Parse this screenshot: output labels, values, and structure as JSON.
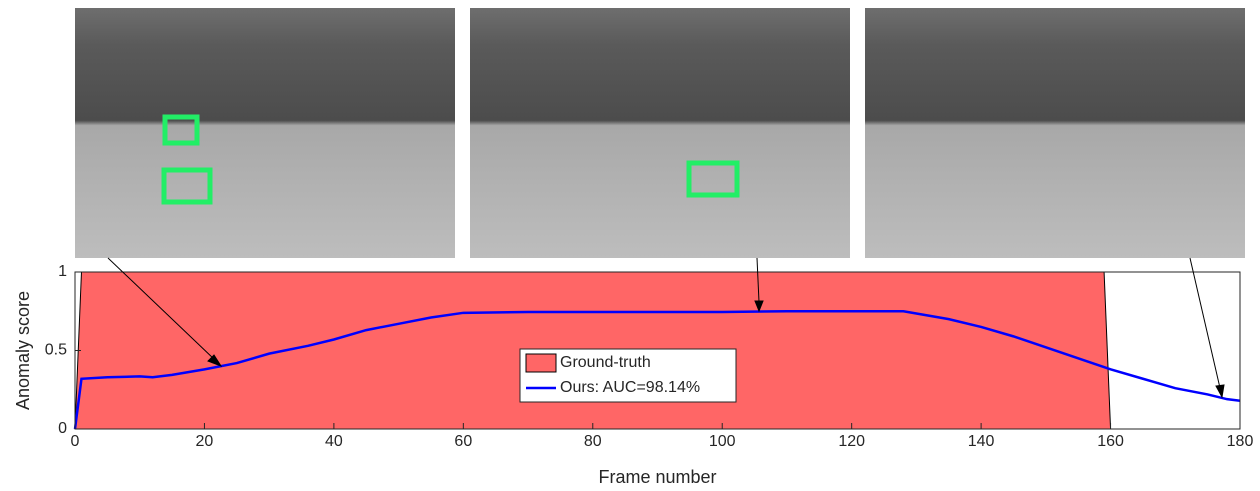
{
  "chart_data": {
    "type": "line",
    "xlabel": "Frame number",
    "ylabel": "Anomaly score",
    "xlim": [
      0,
      180
    ],
    "ylim": [
      0,
      1
    ],
    "xticks": [
      0,
      20,
      40,
      60,
      80,
      100,
      120,
      140,
      160,
      180
    ],
    "yticks": [
      0,
      0.5,
      1
    ],
    "grid": false,
    "legend": "center",
    "series": [
      {
        "name": "Ground-truth",
        "kind": "area",
        "color": "#ff6666",
        "x": [
          0,
          1,
          159,
          160
        ],
        "values": [
          0,
          1,
          1,
          0
        ]
      },
      {
        "name": "Ours: AUC=98.14%",
        "kind": "line",
        "color": "#0000ff",
        "x": [
          0,
          1,
          5,
          10,
          12,
          15,
          20,
          25,
          30,
          36,
          40,
          45,
          50,
          55,
          60,
          70,
          80,
          90,
          100,
          110,
          120,
          128,
          135,
          140,
          145,
          150,
          155,
          160,
          165,
          170,
          175,
          178,
          180
        ],
        "values": [
          0,
          0.32,
          0.33,
          0.335,
          0.33,
          0.345,
          0.38,
          0.42,
          0.48,
          0.53,
          0.57,
          0.63,
          0.67,
          0.71,
          0.74,
          0.745,
          0.745,
          0.745,
          0.745,
          0.75,
          0.75,
          0.75,
          0.7,
          0.65,
          0.59,
          0.52,
          0.45,
          0.38,
          0.32,
          0.26,
          0.22,
          0.19,
          0.18
        ]
      }
    ]
  }
}
